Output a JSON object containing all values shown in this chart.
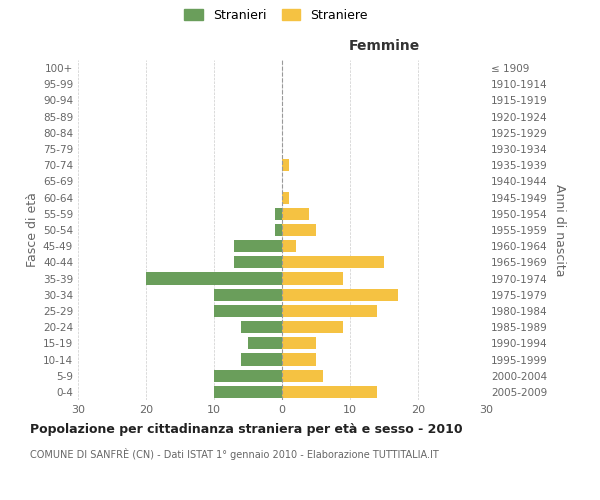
{
  "age_groups": [
    "100+",
    "95-99",
    "90-94",
    "85-89",
    "80-84",
    "75-79",
    "70-74",
    "65-69",
    "60-64",
    "55-59",
    "50-54",
    "45-49",
    "40-44",
    "35-39",
    "30-34",
    "25-29",
    "20-24",
    "15-19",
    "10-14",
    "5-9",
    "0-4"
  ],
  "birth_years": [
    "≤ 1909",
    "1910-1914",
    "1915-1919",
    "1920-1924",
    "1925-1929",
    "1930-1934",
    "1935-1939",
    "1940-1944",
    "1945-1949",
    "1950-1954",
    "1955-1959",
    "1960-1964",
    "1965-1969",
    "1970-1974",
    "1975-1979",
    "1980-1984",
    "1985-1989",
    "1990-1994",
    "1995-1999",
    "2000-2004",
    "2005-2009"
  ],
  "males": [
    0,
    0,
    0,
    0,
    0,
    0,
    0,
    0,
    0,
    1,
    1,
    7,
    7,
    20,
    10,
    10,
    6,
    5,
    6,
    10,
    10
  ],
  "females": [
    0,
    0,
    0,
    0,
    0,
    0,
    1,
    0,
    1,
    4,
    5,
    2,
    15,
    9,
    17,
    14,
    9,
    5,
    5,
    6,
    14
  ],
  "male_color": "#6a9e5b",
  "female_color": "#f5c242",
  "xlim": 30,
  "title": "Popolazione per cittadinanza straniera per età e sesso - 2010",
  "subtitle": "COMUNE DI SANFRÈ (CN) - Dati ISTAT 1° gennaio 2010 - Elaborazione TUTTITALIA.IT",
  "xlabel_right": "Femmine",
  "ylabel_left": "Fasce di età",
  "ylabel_right": "Anni di nascita",
  "legend_male": "Stranieri",
  "legend_female": "Straniere",
  "bg_color": "#ffffff",
  "grid_color": "#cccccc"
}
